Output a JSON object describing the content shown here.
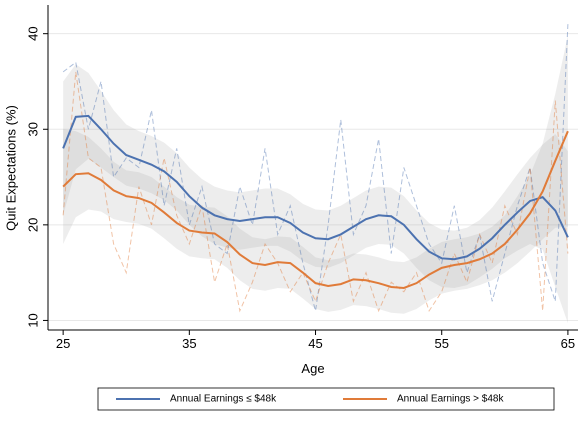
{
  "chart_data": {
    "type": "line",
    "xlabel": "Age",
    "ylabel": "Quit Expectations (%)",
    "x": [
      25,
      26,
      27,
      28,
      29,
      30,
      31,
      32,
      33,
      34,
      35,
      36,
      37,
      38,
      39,
      40,
      41,
      42,
      43,
      44,
      45,
      46,
      47,
      48,
      49,
      50,
      51,
      52,
      53,
      54,
      55,
      56,
      57,
      58,
      59,
      60,
      61,
      62,
      63,
      64,
      65
    ],
    "xlim": [
      23.8,
      65.8
    ],
    "xticks": [
      25,
      35,
      45,
      55,
      65
    ],
    "ylim": [
      9,
      43
    ],
    "yticks": [
      10,
      20,
      30,
      40
    ],
    "grid": true,
    "legend": "bottom",
    "series": [
      {
        "name": "Annual Earnings ≤ $48k",
        "color": "#4c72b0",
        "values": [
          28,
          31.3,
          31.4,
          30,
          28.5,
          27.3,
          26.8,
          26.3,
          25.6,
          24.5,
          23,
          21.8,
          21,
          20.6,
          20.4,
          20.6,
          20.8,
          20.8,
          20.2,
          19.2,
          18.6,
          18.5,
          19,
          19.8,
          20.6,
          21,
          20.9,
          20,
          18.5,
          17.2,
          16.5,
          16.4,
          16.7,
          17.5,
          18.6,
          20,
          21.3,
          22.5,
          22.9,
          21.5,
          18.7
        ],
        "lower": [
          21,
          25.8,
          26.9,
          26,
          25,
          24.1,
          23.8,
          23.3,
          22.6,
          21.5,
          20,
          18.8,
          18,
          17.6,
          17.4,
          17.6,
          17.8,
          17.8,
          17.2,
          16.2,
          15.6,
          15.5,
          16,
          16.8,
          17.6,
          18,
          17.9,
          17,
          15.5,
          14.2,
          13.5,
          13.4,
          13.7,
          14.5,
          15.4,
          16.5,
          17.3,
          18,
          17.4,
          13.5,
          9.7
        ],
        "upper": [
          35,
          36.8,
          35.9,
          34,
          32,
          30.5,
          29.8,
          29.3,
          28.6,
          27.5,
          26,
          24.8,
          24,
          23.6,
          23.4,
          23.6,
          23.8,
          23.8,
          23.2,
          22.2,
          21.6,
          21.5,
          22,
          22.8,
          23.6,
          24,
          23.9,
          23,
          21.5,
          20.2,
          19.5,
          19.4,
          19.7,
          20.5,
          21.8,
          23.5,
          25.3,
          27,
          28.4,
          29.5,
          27.7
        ],
        "raw": [
          36,
          37,
          30,
          35,
          25,
          27,
          26,
          32,
          22,
          28,
          20,
          24,
          18,
          17,
          24,
          20,
          28,
          19,
          22,
          16,
          11,
          20,
          31,
          19,
          22,
          29,
          17,
          26,
          22,
          18,
          16,
          22,
          15,
          19,
          12,
          17,
          22,
          26,
          16,
          12,
          41
        ]
      },
      {
        "name": "Annual Earnings > $48k",
        "color": "#e07b39",
        "values": [
          24,
          25.3,
          25.4,
          24.7,
          23.6,
          23,
          22.8,
          22.3,
          21.3,
          20.2,
          19.4,
          19.2,
          19.1,
          18.2,
          16.9,
          16,
          15.8,
          16.1,
          16,
          15,
          13.9,
          13.6,
          13.8,
          14.3,
          14.2,
          13.9,
          13.5,
          13.4,
          13.9,
          14.8,
          15.5,
          15.8,
          16,
          16.4,
          17,
          18,
          19.5,
          21.2,
          23.5,
          26.7,
          29.8
        ],
        "lower": [
          18,
          20.8,
          21.6,
          21.4,
          20.6,
          20.3,
          20.1,
          19.6,
          18.6,
          17.5,
          16.7,
          16.5,
          16.4,
          15.5,
          14.2,
          13.3,
          13.1,
          13.4,
          13.3,
          12.3,
          11.2,
          10.9,
          11.1,
          11.6,
          11.5,
          11.2,
          10.8,
          10.7,
          11.2,
          12.1,
          12.8,
          13.1,
          13.3,
          13.7,
          14.2,
          15,
          16,
          17.2,
          18.5,
          19.7,
          19.8
        ],
        "upper": [
          30,
          29.8,
          29.2,
          28,
          26.6,
          25.7,
          25.5,
          25,
          24,
          22.9,
          22.1,
          21.9,
          21.8,
          20.9,
          19.6,
          18.7,
          18.5,
          18.8,
          18.7,
          17.7,
          16.6,
          16.3,
          16.5,
          17,
          16.9,
          16.6,
          16.2,
          16.1,
          16.6,
          17.5,
          18.2,
          18.5,
          18.7,
          19.1,
          19.8,
          21,
          23,
          25.2,
          28.5,
          33.7,
          39.8
        ],
        "raw": [
          21,
          36,
          27,
          26,
          18,
          15,
          24,
          20,
          27,
          21,
          18,
          22,
          14,
          18,
          11,
          14,
          18,
          16,
          13,
          15,
          12,
          16,
          19,
          12,
          15,
          11,
          14,
          13,
          15,
          11,
          13,
          17,
          14,
          19,
          16,
          22,
          19,
          26,
          11,
          33,
          17
        ]
      }
    ]
  }
}
